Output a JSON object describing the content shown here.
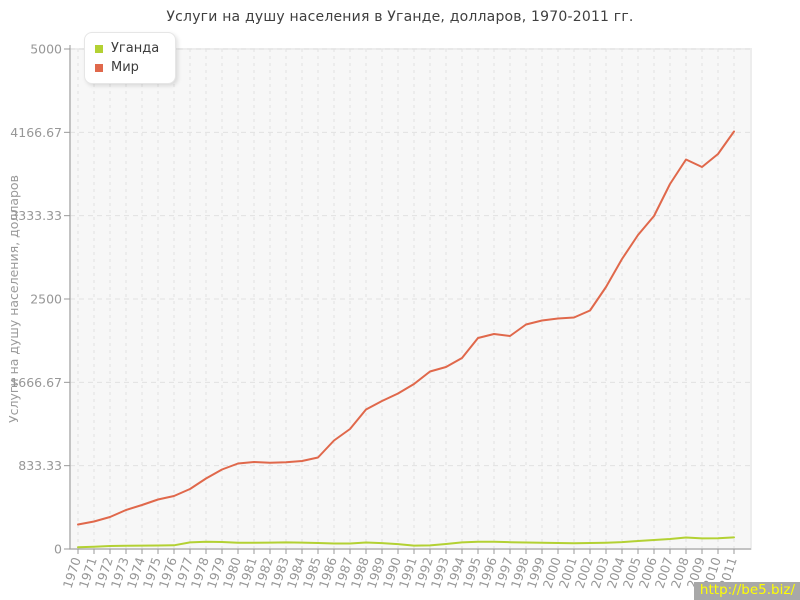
{
  "title": "Услуги на душу населения в Уганде, долларов, 1970-2011 гг.",
  "y_axis_title": "Услуги на душу населения, долларов",
  "footer": {
    "link_text": "http://be5.biz/"
  },
  "colors": {
    "plot_background": "#f7f7f7",
    "gridline": "#e2e2e2",
    "axis": "#999999",
    "tick_label": "#979797",
    "title_text": "#3f3f3f",
    "footer_background": "#a8a8a8",
    "footer_text": "#ffff00"
  },
  "chart_data": {
    "type": "line",
    "title": "Услуги на душу населения в Уганде, долларов, 1970-2011 гг.",
    "ylabel": "Услуги на душу населения, долларов",
    "xlabel": "",
    "grid": true,
    "legend_position": "top-left",
    "ylim": [
      0,
      5000
    ],
    "y_ticks": [
      {
        "value": 0,
        "label": "0"
      },
      {
        "value": 833.33,
        "label": "833.33"
      },
      {
        "value": 1666.67,
        "label": "1666.67"
      },
      {
        "value": 2500,
        "label": "2500"
      },
      {
        "value": 3333.33,
        "label": "3333.33"
      },
      {
        "value": 4166.67,
        "label": "4166.67"
      },
      {
        "value": 5000,
        "label": "5000"
      }
    ],
    "x": [
      1970,
      1971,
      1972,
      1973,
      1974,
      1975,
      1976,
      1977,
      1978,
      1979,
      1980,
      1981,
      1982,
      1983,
      1984,
      1985,
      1986,
      1987,
      1988,
      1989,
      1990,
      1991,
      1992,
      1993,
      1994,
      1995,
      1996,
      1997,
      1998,
      1999,
      2000,
      2001,
      2002,
      2003,
      2004,
      2005,
      2006,
      2007,
      2008,
      2009,
      2010,
      2011
    ],
    "series": [
      {
        "name": "Уганда",
        "color": "#b3d133",
        "values": [
          18,
          23,
          30,
          33,
          34,
          35,
          37,
          66,
          73,
          70,
          62,
          63,
          64,
          66,
          64,
          60,
          55,
          55,
          65,
          59,
          49,
          34,
          36,
          50,
          66,
          73,
          72,
          68,
          65,
          62,
          60,
          58,
          60,
          63,
          69,
          80,
          90,
          100,
          115,
          106,
          107,
          116
        ]
      },
      {
        "name": "Мир",
        "color": "#e0684b",
        "values": [
          245,
          275,
          320,
          390,
          440,
          495,
          530,
          600,
          705,
          795,
          855,
          870,
          862,
          868,
          880,
          915,
          1085,
          1200,
          1395,
          1480,
          1555,
          1650,
          1775,
          1820,
          1910,
          2110,
          2150,
          2130,
          2245,
          2285,
          2305,
          2315,
          2385,
          2620,
          2900,
          3140,
          3330,
          3650,
          3895,
          3820,
          3950,
          4175
        ]
      }
    ]
  }
}
